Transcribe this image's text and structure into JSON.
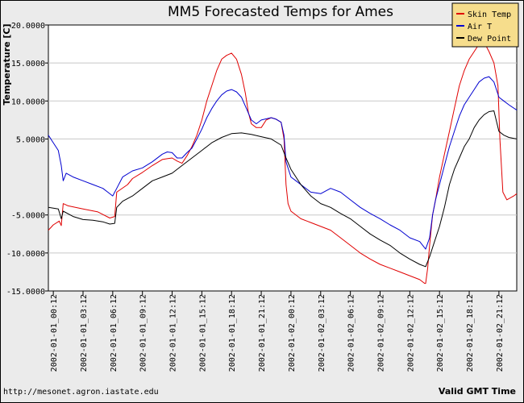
{
  "chart_data": {
    "type": "line",
    "title": "MM5 Forecasted Temps for Ames",
    "ylabel": "Temperature [C]",
    "xlabel": "Valid GMT Time",
    "footer": "http://mesonet.agron.iastate.edu",
    "ylim": [
      -15,
      20
    ],
    "xlim": [
      -0.5,
      46.8
    ],
    "y_ticks": [
      {
        "value": 20,
        "label": "20.0000"
      },
      {
        "value": 15,
        "label": "15.0000"
      },
      {
        "value": 10,
        "label": "10.0000"
      },
      {
        "value": 5,
        "label": "5.0000"
      },
      {
        "value": -5,
        "label": "-5.0000"
      },
      {
        "value": -10,
        "label": "-10.0000"
      },
      {
        "value": -15,
        "label": "-15.0000"
      }
    ],
    "x_ticks": [
      {
        "value": 0,
        "label": "2002-01-01_00:12"
      },
      {
        "value": 3,
        "label": "2002-01-01_03:12"
      },
      {
        "value": 6,
        "label": "2002-01-01_06:12"
      },
      {
        "value": 9,
        "label": "2002-01-01_09:12"
      },
      {
        "value": 12,
        "label": "2002-01-01_12:12"
      },
      {
        "value": 15,
        "label": "2002-01-01_15:12"
      },
      {
        "value": 18,
        "label": "2002-01-01_18:12"
      },
      {
        "value": 21,
        "label": "2002-01-01_21:12"
      },
      {
        "value": 24,
        "label": "2002-01-02_00:12"
      },
      {
        "value": 27,
        "label": "2002-01-02_03:12"
      },
      {
        "value": 30,
        "label": "2002-01-02_06:12"
      },
      {
        "value": 33,
        "label": "2002-01-02_09:12"
      },
      {
        "value": 36,
        "label": "2002-01-02_12:12"
      },
      {
        "value": 39,
        "label": "2002-01-02_15:12"
      },
      {
        "value": 42,
        "label": "2002-01-02_18:12"
      },
      {
        "value": 45,
        "label": "2002-01-02_21:12"
      }
    ],
    "grid": true,
    "legend_position": "top-right",
    "series": [
      {
        "name": "Skin Temp",
        "color": "#e00000",
        "points": [
          [
            -0.5,
            -7
          ],
          [
            0,
            -6.3
          ],
          [
            0.6,
            -5.8
          ],
          [
            0.8,
            -6.4
          ],
          [
            1,
            -3.5
          ],
          [
            1.5,
            -3.8
          ],
          [
            3,
            -4.2
          ],
          [
            4.5,
            -4.6
          ],
          [
            5.7,
            -5.4
          ],
          [
            6.2,
            -5.2
          ],
          [
            6.4,
            -2
          ],
          [
            7.5,
            -1
          ],
          [
            8,
            -0.2
          ],
          [
            9,
            0.6
          ],
          [
            10,
            1.5
          ],
          [
            11,
            2.3
          ],
          [
            11.5,
            2.4
          ],
          [
            12,
            2.5
          ],
          [
            12.5,
            2.1
          ],
          [
            13,
            1.8
          ],
          [
            13.5,
            2.8
          ],
          [
            14,
            4
          ],
          [
            14.5,
            5.5
          ],
          [
            15,
            7.5
          ],
          [
            15.5,
            10
          ],
          [
            16,
            12
          ],
          [
            16.5,
            14
          ],
          [
            17,
            15.5
          ],
          [
            17.5,
            16
          ],
          [
            18,
            16.3
          ],
          [
            18.5,
            15.5
          ],
          [
            19,
            13.5
          ],
          [
            19.4,
            11
          ],
          [
            19.7,
            8.5
          ],
          [
            20,
            7
          ],
          [
            20.5,
            6.5
          ],
          [
            21,
            6.5
          ],
          [
            21.5,
            7.5
          ],
          [
            22,
            7.8
          ],
          [
            22.5,
            7.6
          ],
          [
            23,
            7.2
          ],
          [
            23.3,
            5
          ],
          [
            23.5,
            -1
          ],
          [
            23.7,
            -3.5
          ],
          [
            24,
            -4.5
          ],
          [
            25,
            -5.5
          ],
          [
            26,
            -6
          ],
          [
            27,
            -6.5
          ],
          [
            28,
            -7
          ],
          [
            29,
            -8
          ],
          [
            30,
            -9
          ],
          [
            31,
            -10
          ],
          [
            32,
            -10.8
          ],
          [
            33,
            -11.5
          ],
          [
            34,
            -12
          ],
          [
            35,
            -12.5
          ],
          [
            36,
            -13
          ],
          [
            37,
            -13.5
          ],
          [
            37.5,
            -14
          ],
          [
            37.6,
            -14
          ],
          [
            37.8,
            -12
          ],
          [
            38,
            -9
          ],
          [
            38.3,
            -5
          ],
          [
            38.6,
            -3
          ],
          [
            39,
            0
          ],
          [
            39.5,
            3
          ],
          [
            40,
            6
          ],
          [
            40.5,
            9
          ],
          [
            41,
            12
          ],
          [
            41.5,
            14
          ],
          [
            42,
            15.5
          ],
          [
            42.5,
            16.5
          ],
          [
            43,
            17.5
          ],
          [
            43.3,
            18
          ],
          [
            43.6,
            17.5
          ],
          [
            44,
            16.5
          ],
          [
            44.5,
            15
          ],
          [
            44.9,
            12
          ],
          [
            45.1,
            5
          ],
          [
            45.4,
            -2
          ],
          [
            45.8,
            -3
          ],
          [
            46.5,
            -2.5
          ],
          [
            46.8,
            -2.2
          ]
        ]
      },
      {
        "name": "Air T",
        "color": "#0000d0",
        "points": [
          [
            -0.5,
            5.5
          ],
          [
            0,
            4.5
          ],
          [
            0.5,
            3.5
          ],
          [
            0.8,
            1.5
          ],
          [
            1,
            -0.5
          ],
          [
            1.3,
            0.5
          ],
          [
            2,
            0
          ],
          [
            3,
            -0.5
          ],
          [
            4,
            -1
          ],
          [
            5,
            -1.5
          ],
          [
            5.5,
            -2
          ],
          [
            6,
            -2.5
          ],
          [
            6.4,
            -1.5
          ],
          [
            7,
            0
          ],
          [
            8,
            0.8
          ],
          [
            9,
            1.2
          ],
          [
            10,
            2
          ],
          [
            11,
            3
          ],
          [
            11.5,
            3.3
          ],
          [
            12,
            3.2
          ],
          [
            12.5,
            2.5
          ],
          [
            13,
            2.5
          ],
          [
            13.5,
            3.2
          ],
          [
            14,
            3.8
          ],
          [
            14.5,
            5
          ],
          [
            15,
            6.3
          ],
          [
            15.5,
            7.8
          ],
          [
            16,
            9
          ],
          [
            16.5,
            10
          ],
          [
            17,
            10.8
          ],
          [
            17.5,
            11.3
          ],
          [
            18,
            11.5
          ],
          [
            18.5,
            11.2
          ],
          [
            19,
            10.5
          ],
          [
            19.5,
            9
          ],
          [
            20,
            7.5
          ],
          [
            20.5,
            7
          ],
          [
            21,
            7.5
          ],
          [
            22,
            7.8
          ],
          [
            22.5,
            7.6
          ],
          [
            23,
            7.2
          ],
          [
            23.3,
            5.5
          ],
          [
            23.5,
            2
          ],
          [
            24,
            0
          ],
          [
            24.5,
            -0.5
          ],
          [
            25,
            -1
          ],
          [
            26,
            -2
          ],
          [
            27,
            -2.2
          ],
          [
            28,
            -1.5
          ],
          [
            29,
            -2
          ],
          [
            30,
            -3
          ],
          [
            31,
            -4
          ],
          [
            32,
            -4.8
          ],
          [
            33,
            -5.5
          ],
          [
            34,
            -6.3
          ],
          [
            35,
            -7
          ],
          [
            36,
            -8
          ],
          [
            37,
            -8.5
          ],
          [
            37.6,
            -9.5
          ],
          [
            38,
            -8
          ],
          [
            38.3,
            -5
          ],
          [
            38.6,
            -3
          ],
          [
            39,
            -1
          ],
          [
            39.5,
            1.5
          ],
          [
            40,
            4
          ],
          [
            40.5,
            6
          ],
          [
            41,
            8
          ],
          [
            41.5,
            9.5
          ],
          [
            42,
            10.5
          ],
          [
            42.5,
            11.5
          ],
          [
            43,
            12.5
          ],
          [
            43.5,
            13
          ],
          [
            44,
            13.2
          ],
          [
            44.5,
            12.5
          ],
          [
            45,
            10.5
          ],
          [
            45.5,
            10
          ],
          [
            46,
            9.5
          ],
          [
            46.8,
            8.8
          ]
        ]
      },
      {
        "name": "Dew Point",
        "color": "#000000",
        "points": [
          [
            -0.5,
            -4
          ],
          [
            0.5,
            -4.2
          ],
          [
            0.8,
            -5.5
          ],
          [
            1,
            -4.5
          ],
          [
            2,
            -5.2
          ],
          [
            3,
            -5.6
          ],
          [
            4,
            -5.7
          ],
          [
            5,
            -5.9
          ],
          [
            5.7,
            -6.2
          ],
          [
            6.2,
            -6.1
          ],
          [
            6.4,
            -4
          ],
          [
            7,
            -3.2
          ],
          [
            8,
            -2.5
          ],
          [
            9,
            -1.5
          ],
          [
            10,
            -0.5
          ],
          [
            11,
            0
          ],
          [
            12,
            0.5
          ],
          [
            13,
            1.5
          ],
          [
            14,
            2.5
          ],
          [
            15,
            3.5
          ],
          [
            16,
            4.5
          ],
          [
            17,
            5.2
          ],
          [
            18,
            5.7
          ],
          [
            19,
            5.8
          ],
          [
            20,
            5.6
          ],
          [
            21,
            5.3
          ],
          [
            22,
            5
          ],
          [
            23,
            4.2
          ],
          [
            23.5,
            2.5
          ],
          [
            24,
            1
          ],
          [
            25,
            -1
          ],
          [
            26,
            -2.5
          ],
          [
            27,
            -3.5
          ],
          [
            28,
            -4
          ],
          [
            29,
            -4.8
          ],
          [
            30,
            -5.5
          ],
          [
            31,
            -6.5
          ],
          [
            32,
            -7.5
          ],
          [
            33,
            -8.3
          ],
          [
            34,
            -9
          ],
          [
            35,
            -10
          ],
          [
            36,
            -10.8
          ],
          [
            37,
            -11.5
          ],
          [
            37.6,
            -11.8
          ],
          [
            38,
            -10.5
          ],
          [
            38.5,
            -8.5
          ],
          [
            39,
            -6.5
          ],
          [
            39.5,
            -4
          ],
          [
            40,
            -1
          ],
          [
            40.5,
            1
          ],
          [
            41,
            2.5
          ],
          [
            41.5,
            4
          ],
          [
            42,
            5
          ],
          [
            42.5,
            6.5
          ],
          [
            43,
            7.5
          ],
          [
            43.5,
            8.2
          ],
          [
            44,
            8.6
          ],
          [
            44.5,
            8.7
          ],
          [
            45,
            6
          ],
          [
            45.5,
            5.5
          ],
          [
            46,
            5.2
          ],
          [
            46.8,
            5
          ]
        ]
      }
    ]
  }
}
